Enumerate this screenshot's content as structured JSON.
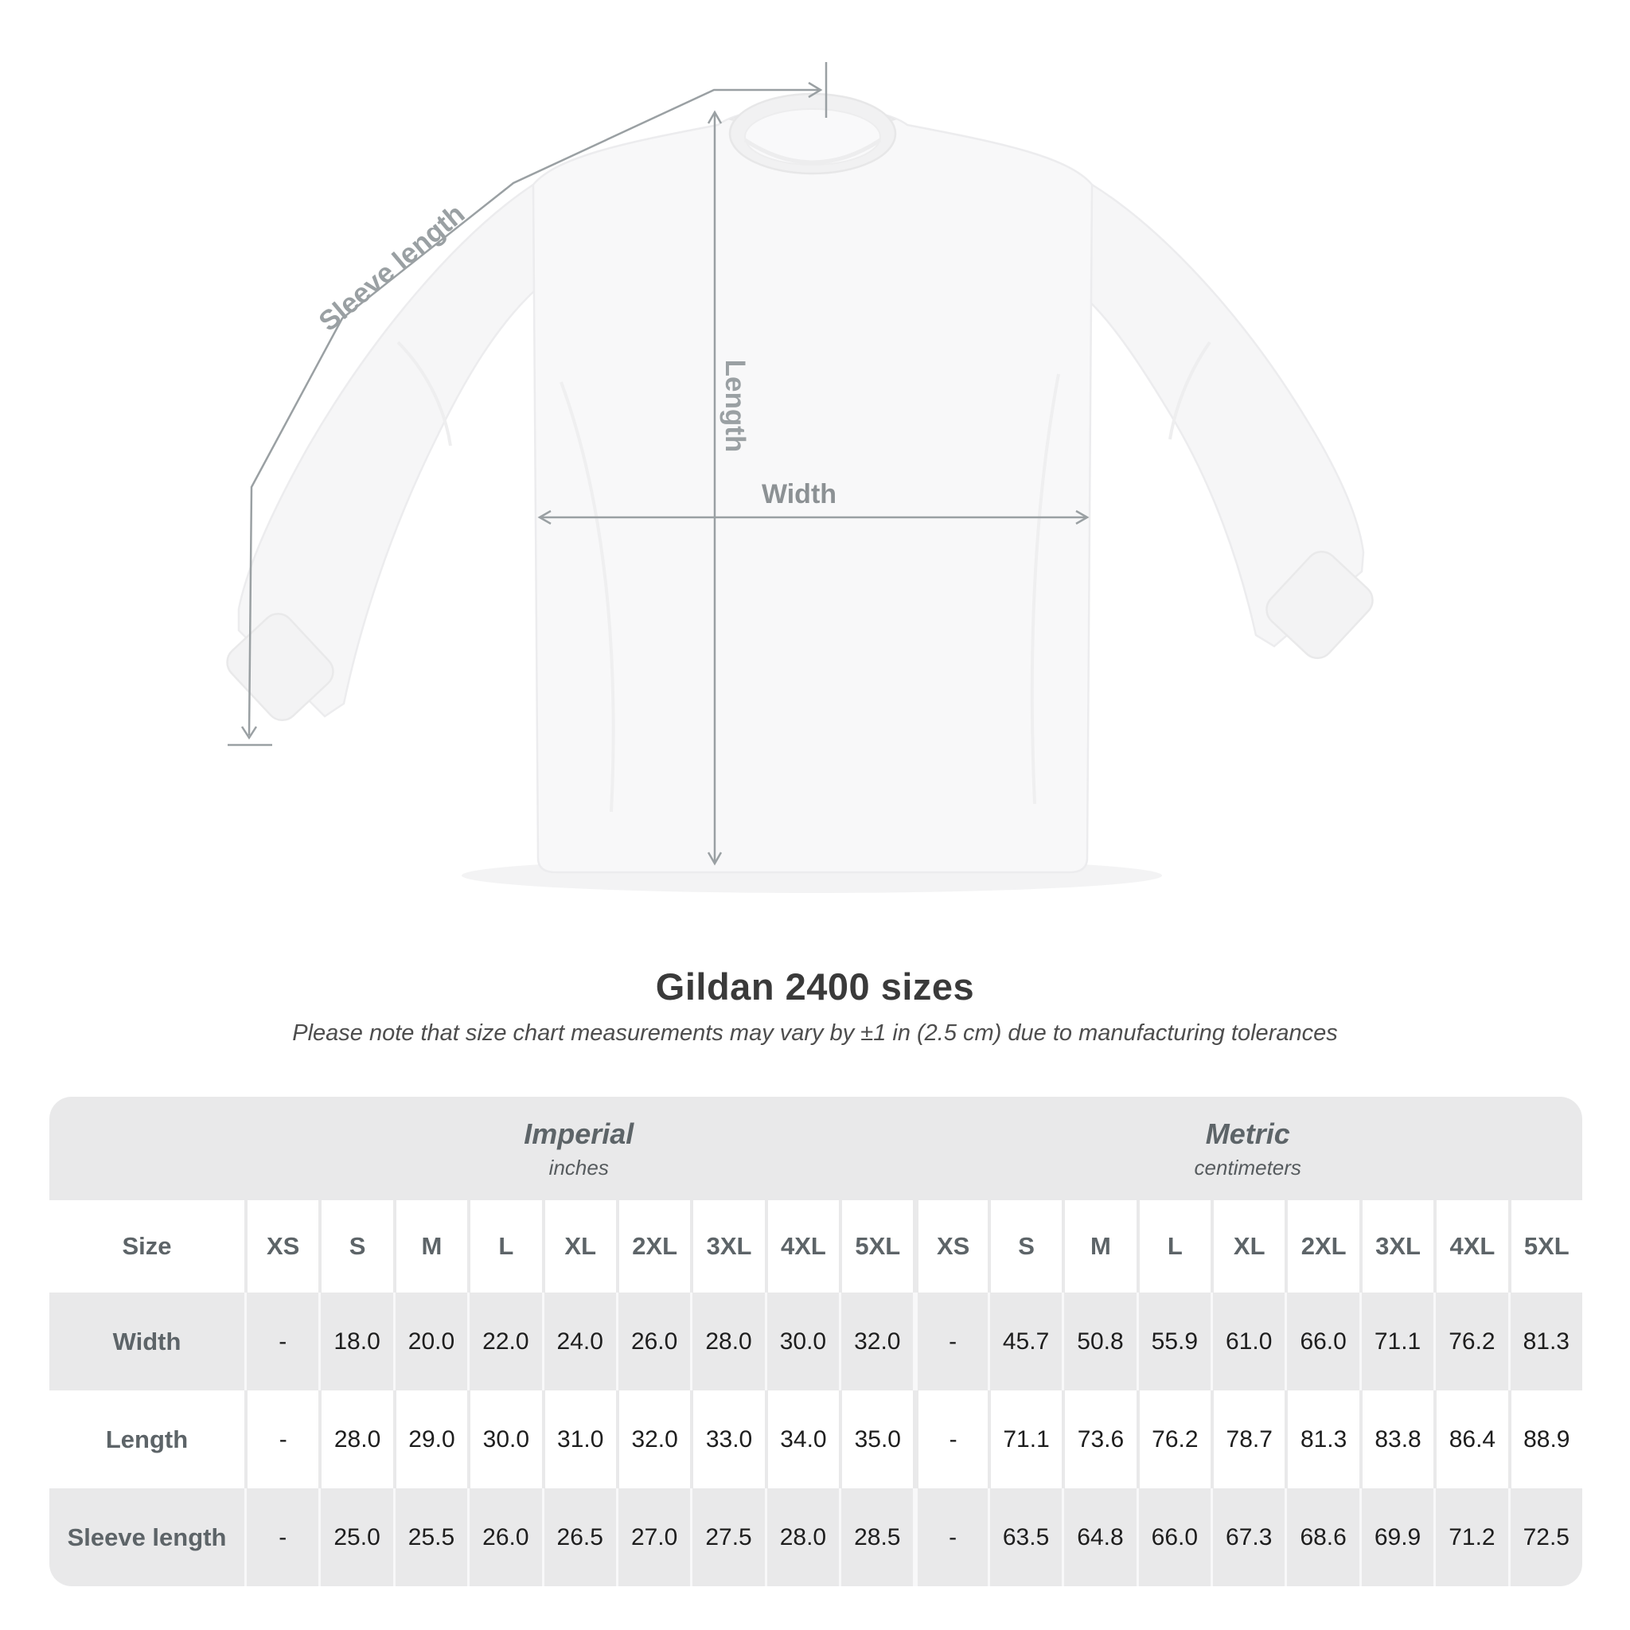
{
  "diagram": {
    "sleeve_length_label": "Sleeve length",
    "length_label": "Length",
    "width_label": "Width"
  },
  "title": "Gildan 2400 sizes",
  "subtitle": "Please note that size chart measurements may vary by ±1 in (2.5 cm) due to manufacturing tolerances",
  "table": {
    "size_column_header": "Size",
    "unit_groups": [
      {
        "name": "Imperial",
        "unit": "inches"
      },
      {
        "name": "Metric",
        "unit": "centimeters"
      }
    ],
    "sizes": [
      "XS",
      "S",
      "M",
      "L",
      "XL",
      "2XL",
      "3XL",
      "4XL",
      "5XL"
    ],
    "rows": [
      {
        "label": "Width",
        "imperial": [
          "-",
          "18.0",
          "20.0",
          "22.0",
          "24.0",
          "26.0",
          "28.0",
          "30.0",
          "32.0"
        ],
        "metric": [
          "-",
          "45.7",
          "50.8",
          "55.9",
          "61.0",
          "66.0",
          "71.1",
          "76.2",
          "81.3"
        ]
      },
      {
        "label": "Length",
        "imperial": [
          "-",
          "28.0",
          "29.0",
          "30.0",
          "31.0",
          "32.0",
          "33.0",
          "34.0",
          "35.0"
        ],
        "metric": [
          "-",
          "71.1",
          "73.6",
          "76.2",
          "78.7",
          "81.3",
          "83.8",
          "86.4",
          "88.9"
        ]
      },
      {
        "label": "Sleeve length",
        "imperial": [
          "-",
          "25.0",
          "25.5",
          "26.0",
          "26.5",
          "27.0",
          "27.5",
          "28.0",
          "28.5"
        ],
        "metric": [
          "-",
          "63.5",
          "64.8",
          "66.0",
          "67.3",
          "68.6",
          "69.9",
          "71.2",
          "72.5"
        ]
      }
    ]
  },
  "colors": {
    "dimension_line": "#9aa0a3",
    "dimension_label": "#9aa0a3",
    "table_stripe": "#e9e9ea",
    "header_text": "#5d6468",
    "value_text": "#1e1e1e",
    "title_text": "#3a3a3a"
  }
}
